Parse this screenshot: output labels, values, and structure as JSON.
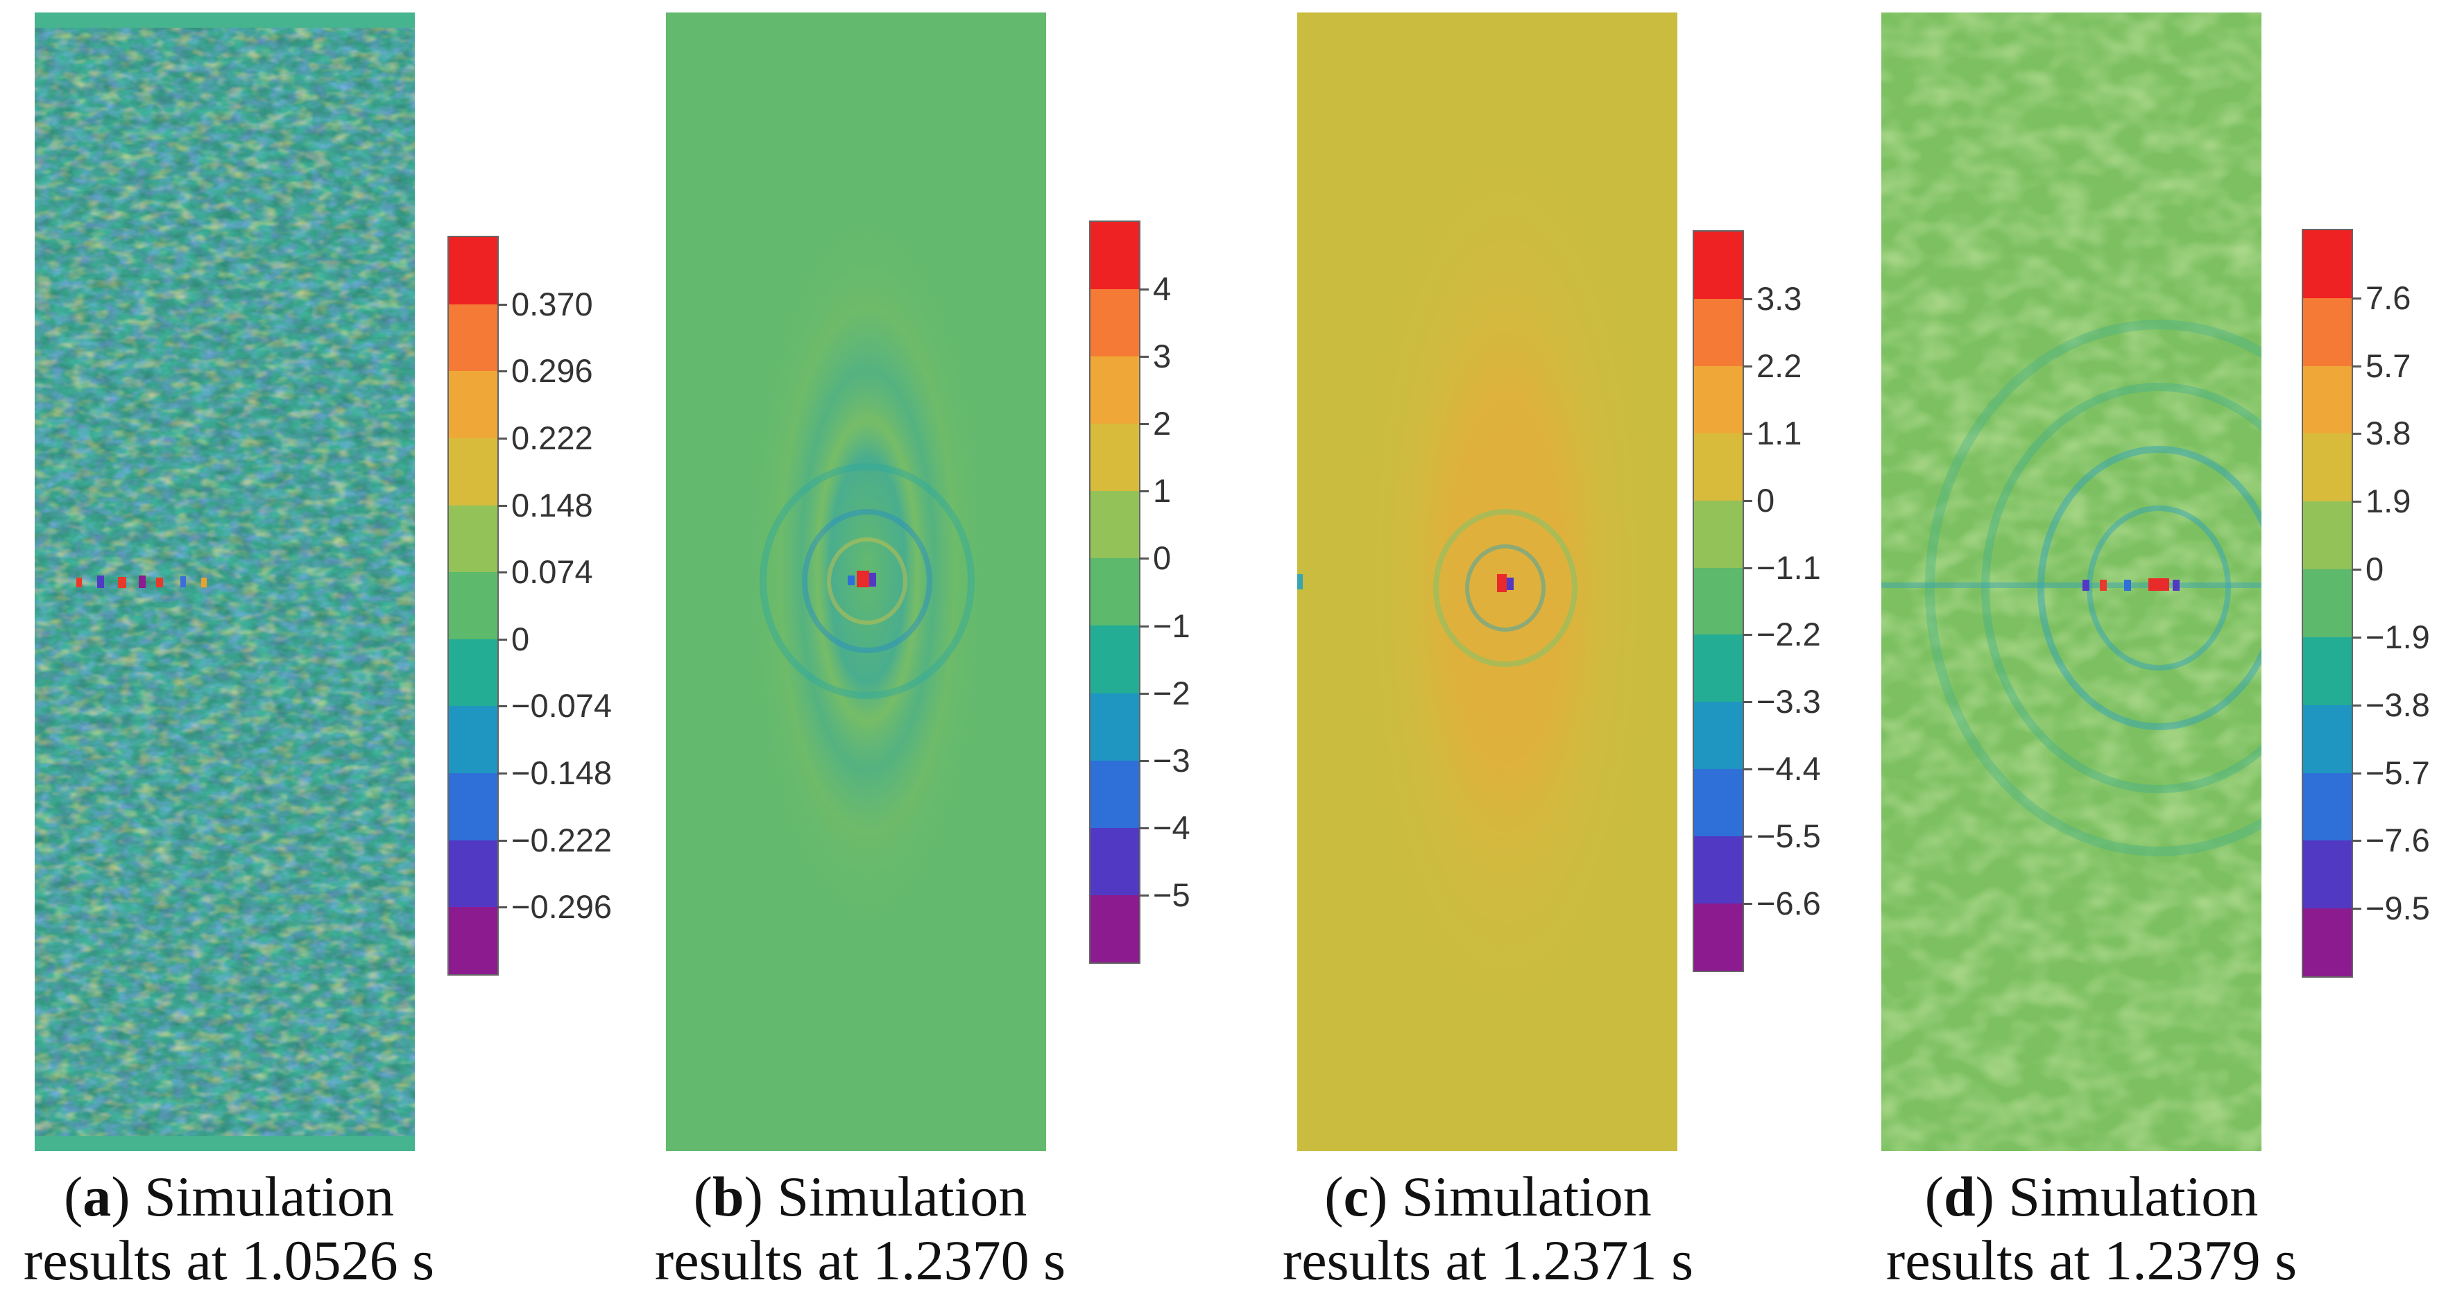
{
  "panels": [
    {
      "letter": "a",
      "caption_rest": ") Simulation",
      "caption_line2": "results at 1.0526 s",
      "colorbar_ticks": [
        "0.370",
        "0.296",
        "0.222",
        "0.148",
        "0.074",
        "0",
        "−0.074",
        "−0.148",
        "−0.222",
        "−0.296"
      ]
    },
    {
      "letter": "b",
      "caption_rest": ") Simulation",
      "caption_line2": "results at 1.2370 s",
      "colorbar_ticks": [
        "4",
        "3",
        "2",
        "1",
        "0",
        "−1",
        "−2",
        "−3",
        "−4",
        "−5"
      ]
    },
    {
      "letter": "c",
      "caption_rest": ") Simulation",
      "caption_line2": "results at 1.2371 s",
      "colorbar_ticks": [
        "3.3",
        "2.2",
        "1.1",
        "0",
        "−1.1",
        "−2.2",
        "−3.3",
        "−4.4",
        "−5.5",
        "−6.6"
      ]
    },
    {
      "letter": "d",
      "caption_rest": ") Simulation",
      "caption_line2": "results at 1.2379 s",
      "colorbar_ticks": [
        "7.6",
        "5.7",
        "3.8",
        "1.9",
        "0",
        "−1.9",
        "−3.8",
        "−5.7",
        "−7.6",
        "−9.5"
      ]
    }
  ],
  "colorbar_colors": [
    "#ee2222",
    "#f47a35",
    "#efa837",
    "#d9bb3c",
    "#93c259",
    "#5db96c",
    "#23ad94",
    "#1f96c2",
    "#2f6fd8",
    "#5239c4",
    "#8b1b8e"
  ]
}
